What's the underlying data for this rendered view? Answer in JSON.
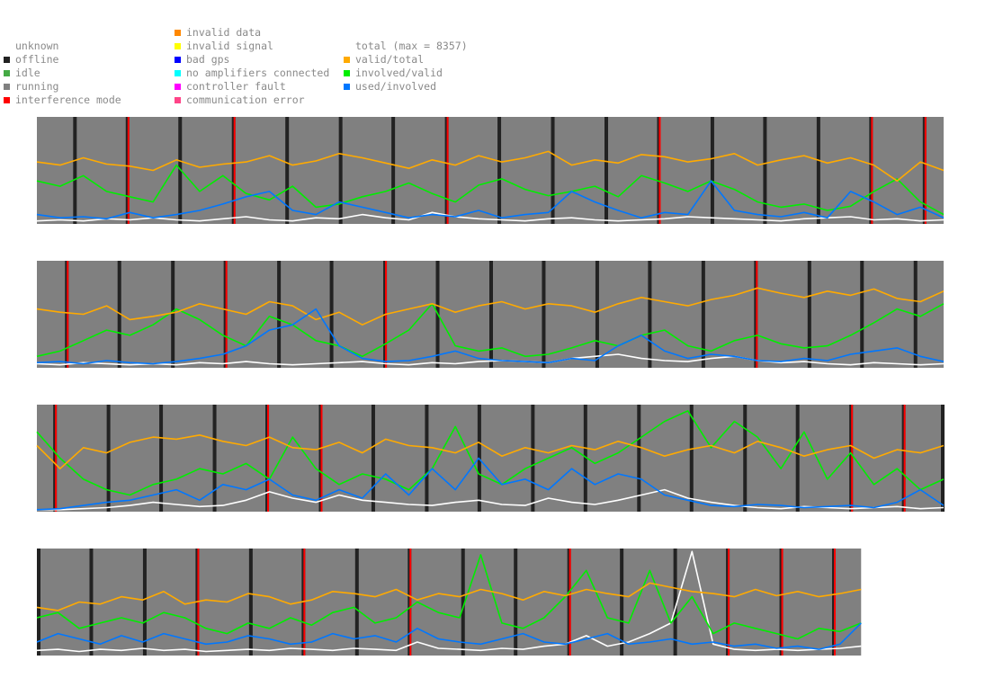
{
  "legend": {
    "status": [
      {
        "label": "unknown",
        "color": ""
      },
      {
        "label": "offline",
        "color": "#222222"
      },
      {
        "label": "idle",
        "color": "#44aa44"
      },
      {
        "label": "running",
        "color": "#808080"
      },
      {
        "label": "interference mode",
        "color": "#ff0000"
      }
    ],
    "errors": [
      {
        "label": "invalid data",
        "color": "#ff8800"
      },
      {
        "label": "invalid signal",
        "color": "#ffff00"
      },
      {
        "label": "bad gps",
        "color": "#0000ff"
      },
      {
        "label": "no amplifiers connected",
        "color": "#00ffff"
      },
      {
        "label": "controller fault",
        "color": "#ff00ff"
      },
      {
        "label": "communication error",
        "color": "#ff4488"
      }
    ],
    "lines": [
      {
        "label": "total (max = 8357)",
        "color": ""
      },
      {
        "label": "valid/total",
        "color": "#ffaa00"
      },
      {
        "label": "involved/valid",
        "color": "#00ee00"
      },
      {
        "label": "used/involved",
        "color": "#0077ff"
      }
    ]
  },
  "colors": {
    "background": "#808080",
    "offline": "#222222",
    "interference": "#ff0000",
    "total": "#ffffff",
    "valid_total": "#ffaa00",
    "involved_valid": "#00ee00",
    "used_involved": "#0077ff"
  },
  "chart_data": {
    "type": "line",
    "ylim": [
      0,
      1
    ],
    "series_names": [
      "total",
      "valid/total",
      "involved/valid",
      "used/involved"
    ],
    "rows": [
      {
        "length": 1.0,
        "offline_markers": [
          0.04,
          0.098,
          0.156,
          0.215,
          0.274,
          0.333,
          0.391,
          0.45,
          0.508,
          0.567,
          0.626,
          0.684,
          0.743,
          0.801,
          0.86,
          0.918,
          0.977
        ],
        "interference_markers": [
          0.098,
          0.215,
          0.45,
          0.684,
          0.918,
          0.977
        ],
        "series": [
          {
            "name": "total",
            "values": [
              0.02,
              0.03,
              0.02,
              0.04,
              0.03,
              0.05,
              0.03,
              0.02,
              0.04,
              0.06,
              0.03,
              0.02,
              0.05,
              0.04,
              0.08,
              0.05,
              0.03,
              0.1,
              0.06,
              0.04,
              0.03,
              0.02,
              0.04,
              0.05,
              0.03,
              0.02,
              0.03,
              0.04,
              0.06,
              0.05,
              0.04,
              0.03,
              0.02,
              0.04,
              0.05,
              0.06,
              0.03,
              0.04,
              0.02,
              0.03
            ]
          },
          {
            "name": "valid/total",
            "values": [
              0.58,
              0.55,
              0.62,
              0.56,
              0.54,
              0.5,
              0.6,
              0.53,
              0.56,
              0.58,
              0.64,
              0.55,
              0.59,
              0.66,
              0.62,
              0.57,
              0.52,
              0.6,
              0.55,
              0.64,
              0.58,
              0.62,
              0.68,
              0.55,
              0.6,
              0.57,
              0.65,
              0.63,
              0.58,
              0.61,
              0.66,
              0.55,
              0.6,
              0.64,
              0.57,
              0.62,
              0.55,
              0.4,
              0.58,
              0.5
            ]
          },
          {
            "name": "involved/valid",
            "values": [
              0.4,
              0.35,
              0.45,
              0.3,
              0.25,
              0.2,
              0.55,
              0.3,
              0.45,
              0.28,
              0.22,
              0.35,
              0.15,
              0.18,
              0.25,
              0.3,
              0.38,
              0.28,
              0.2,
              0.36,
              0.42,
              0.32,
              0.26,
              0.3,
              0.35,
              0.25,
              0.45,
              0.38,
              0.3,
              0.4,
              0.32,
              0.2,
              0.15,
              0.18,
              0.12,
              0.16,
              0.3,
              0.42,
              0.2,
              0.08
            ]
          },
          {
            "name": "used/involved",
            "values": [
              0.08,
              0.05,
              0.06,
              0.04,
              0.1,
              0.05,
              0.08,
              0.12,
              0.18,
              0.25,
              0.3,
              0.12,
              0.08,
              0.2,
              0.15,
              0.1,
              0.05,
              0.08,
              0.06,
              0.12,
              0.05,
              0.08,
              0.1,
              0.3,
              0.2,
              0.12,
              0.05,
              0.1,
              0.08,
              0.4,
              0.12,
              0.08,
              0.06,
              0.1,
              0.05,
              0.3,
              0.2,
              0.08,
              0.15,
              0.05
            ]
          }
        ]
      },
      {
        "length": 1.0,
        "offline_markers": [
          0.031,
          0.089,
          0.148,
          0.206,
          0.265,
          0.323,
          0.382,
          0.44,
          0.499,
          0.557,
          0.616,
          0.674,
          0.733,
          0.791,
          0.85,
          0.908,
          0.967
        ],
        "interference_markers": [
          0.031,
          0.206,
          0.382,
          0.791
        ],
        "series": [
          {
            "name": "total",
            "values": [
              0.03,
              0.02,
              0.04,
              0.03,
              0.02,
              0.03,
              0.02,
              0.04,
              0.03,
              0.05,
              0.03,
              0.02,
              0.03,
              0.04,
              0.05,
              0.03,
              0.02,
              0.04,
              0.03,
              0.05,
              0.06,
              0.05,
              0.04,
              0.08,
              0.1,
              0.12,
              0.08,
              0.06,
              0.05,
              0.08,
              0.1,
              0.06,
              0.04,
              0.05,
              0.03,
              0.02,
              0.04,
              0.03,
              0.02,
              0.03
            ]
          },
          {
            "name": "valid/total",
            "values": [
              0.55,
              0.52,
              0.5,
              0.58,
              0.45,
              0.48,
              0.52,
              0.6,
              0.55,
              0.5,
              0.62,
              0.58,
              0.45,
              0.52,
              0.4,
              0.5,
              0.55,
              0.6,
              0.52,
              0.58,
              0.62,
              0.55,
              0.6,
              0.58,
              0.52,
              0.6,
              0.66,
              0.62,
              0.58,
              0.64,
              0.68,
              0.75,
              0.7,
              0.66,
              0.72,
              0.68,
              0.74,
              0.65,
              0.62,
              0.72
            ]
          },
          {
            "name": "involved/valid",
            "values": [
              0.1,
              0.15,
              0.25,
              0.35,
              0.3,
              0.4,
              0.55,
              0.45,
              0.3,
              0.2,
              0.48,
              0.4,
              0.25,
              0.2,
              0.1,
              0.22,
              0.35,
              0.6,
              0.2,
              0.15,
              0.18,
              0.1,
              0.12,
              0.18,
              0.25,
              0.2,
              0.3,
              0.35,
              0.2,
              0.15,
              0.25,
              0.3,
              0.22,
              0.18,
              0.2,
              0.3,
              0.42,
              0.55,
              0.48,
              0.6
            ]
          },
          {
            "name": "used/involved",
            "values": [
              0.04,
              0.05,
              0.03,
              0.06,
              0.04,
              0.03,
              0.05,
              0.08,
              0.12,
              0.2,
              0.35,
              0.4,
              0.55,
              0.2,
              0.08,
              0.05,
              0.06,
              0.1,
              0.15,
              0.08,
              0.06,
              0.05,
              0.04,
              0.08,
              0.06,
              0.2,
              0.3,
              0.15,
              0.08,
              0.12,
              0.1,
              0.06,
              0.05,
              0.08,
              0.06,
              0.12,
              0.15,
              0.18,
              0.1,
              0.05
            ]
          }
        ]
      },
      {
        "length": 1.0,
        "offline_markers": [
          0.018,
          0.077,
          0.135,
          0.194,
          0.252,
          0.311,
          0.369,
          0.428,
          0.486,
          0.545,
          0.603,
          0.662,
          0.72,
          0.779,
          0.837,
          0.896,
          0.954,
          1.0
        ],
        "interference_markers": [
          0.018,
          0.252,
          0.311,
          0.896,
          0.954
        ],
        "series": [
          {
            "name": "total",
            "values": [
              0.01,
              0.01,
              0.02,
              0.03,
              0.05,
              0.08,
              0.06,
              0.04,
              0.05,
              0.1,
              0.18,
              0.12,
              0.08,
              0.15,
              0.1,
              0.08,
              0.06,
              0.05,
              0.08,
              0.1,
              0.06,
              0.05,
              0.12,
              0.08,
              0.06,
              0.1,
              0.15,
              0.2,
              0.12,
              0.08,
              0.05,
              0.03,
              0.02,
              0.04,
              0.03,
              0.02,
              0.03,
              0.04,
              0.02,
              0.03
            ]
          },
          {
            "name": "valid/total",
            "values": [
              0.62,
              0.4,
              0.6,
              0.55,
              0.65,
              0.7,
              0.68,
              0.72,
              0.66,
              0.62,
              0.7,
              0.6,
              0.58,
              0.65,
              0.55,
              0.68,
              0.62,
              0.6,
              0.55,
              0.65,
              0.52,
              0.6,
              0.55,
              0.62,
              0.58,
              0.66,
              0.6,
              0.52,
              0.58,
              0.62,
              0.55,
              0.66,
              0.6,
              0.52,
              0.58,
              0.62,
              0.5,
              0.58,
              0.55,
              0.62
            ]
          },
          {
            "name": "involved/valid",
            "values": [
              0.75,
              0.5,
              0.3,
              0.2,
              0.15,
              0.25,
              0.3,
              0.4,
              0.35,
              0.45,
              0.3,
              0.7,
              0.4,
              0.25,
              0.35,
              0.3,
              0.2,
              0.4,
              0.8,
              0.35,
              0.25,
              0.4,
              0.5,
              0.6,
              0.45,
              0.55,
              0.7,
              0.85,
              0.95,
              0.6,
              0.85,
              0.7,
              0.4,
              0.75,
              0.3,
              0.55,
              0.25,
              0.4,
              0.2,
              0.3
            ]
          },
          {
            "name": "used/involved",
            "values": [
              0.01,
              0.02,
              0.05,
              0.08,
              0.1,
              0.15,
              0.2,
              0.1,
              0.25,
              0.2,
              0.3,
              0.15,
              0.1,
              0.2,
              0.12,
              0.35,
              0.15,
              0.4,
              0.2,
              0.5,
              0.25,
              0.3,
              0.2,
              0.4,
              0.25,
              0.35,
              0.3,
              0.15,
              0.1,
              0.05,
              0.04,
              0.06,
              0.05,
              0.03,
              0.04,
              0.05,
              0.03,
              0.08,
              0.2,
              0.05
            ]
          }
        ]
      },
      {
        "length": 0.909,
        "offline_markers": [
          0.0,
          0.058,
          0.117,
          0.175,
          0.234,
          0.292,
          0.351,
          0.409,
          0.468,
          0.526,
          0.585,
          0.643,
          0.702,
          0.76,
          0.819,
          0.877
        ],
        "interference_markers": [
          0.175,
          0.292,
          0.409,
          0.585,
          0.76,
          0.819,
          0.877
        ],
        "series": [
          {
            "name": "total",
            "values": [
              0.04,
              0.05,
              0.03,
              0.05,
              0.04,
              0.06,
              0.04,
              0.05,
              0.03,
              0.04,
              0.05,
              0.04,
              0.06,
              0.05,
              0.04,
              0.06,
              0.05,
              0.04,
              0.12,
              0.06,
              0.05,
              0.04,
              0.06,
              0.05,
              0.08,
              0.1,
              0.18,
              0.08,
              0.12,
              0.2,
              0.3,
              0.98,
              0.1,
              0.05,
              0.04,
              0.05,
              0.04,
              0.05,
              0.06,
              0.08
            ]
          },
          {
            "name": "valid/total",
            "values": [
              0.45,
              0.42,
              0.5,
              0.48,
              0.55,
              0.52,
              0.6,
              0.48,
              0.52,
              0.5,
              0.58,
              0.55,
              0.48,
              0.52,
              0.6,
              0.58,
              0.55,
              0.62,
              0.52,
              0.58,
              0.55,
              0.62,
              0.58,
              0.52,
              0.6,
              0.56,
              0.62,
              0.58,
              0.55,
              0.68,
              0.64,
              0.6,
              0.58,
              0.55,
              0.62,
              0.56,
              0.6,
              0.55,
              0.58,
              0.62
            ]
          },
          {
            "name": "involved/valid",
            "values": [
              0.35,
              0.4,
              0.25,
              0.3,
              0.35,
              0.3,
              0.4,
              0.35,
              0.25,
              0.2,
              0.3,
              0.25,
              0.35,
              0.28,
              0.4,
              0.45,
              0.3,
              0.35,
              0.5,
              0.4,
              0.35,
              0.95,
              0.3,
              0.25,
              0.35,
              0.55,
              0.8,
              0.35,
              0.3,
              0.8,
              0.3,
              0.55,
              0.2,
              0.3,
              0.25,
              0.2,
              0.15,
              0.25,
              0.22,
              0.3
            ]
          },
          {
            "name": "used/involved",
            "values": [
              0.12,
              0.2,
              0.15,
              0.1,
              0.18,
              0.12,
              0.2,
              0.15,
              0.1,
              0.12,
              0.18,
              0.15,
              0.1,
              0.12,
              0.2,
              0.15,
              0.18,
              0.12,
              0.25,
              0.15,
              0.12,
              0.1,
              0.15,
              0.2,
              0.12,
              0.1,
              0.15,
              0.2,
              0.1,
              0.12,
              0.15,
              0.1,
              0.12,
              0.08,
              0.1,
              0.06,
              0.08,
              0.05,
              0.1,
              0.3
            ]
          }
        ]
      }
    ]
  }
}
